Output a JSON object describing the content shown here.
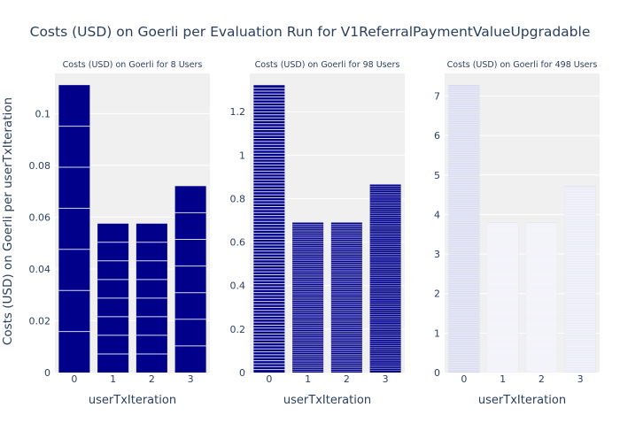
{
  "title": "Costs (USD) on Goerli per Evaluation Run for V1ReferralPaymentValueUpgradable",
  "ylabel": "Costs (USD) on Goerli per userTxIteration",
  "colors": {
    "background": "#ffffff",
    "plot_bg": "#f0f0f0",
    "grid": "#ffffff",
    "text": "#2a3f5f",
    "bar_dark": "#00008b",
    "bar_light": "#b0b4e0"
  },
  "chart_data": [
    {
      "type": "bar",
      "title": "Costs (USD) on Goerli for 8 Users",
      "xlabel": "userTxIteration",
      "categories": [
        "0",
        "1",
        "2",
        "3"
      ],
      "values": [
        0.111,
        0.0575,
        0.0575,
        0.072
      ],
      "ylim": [
        0,
        0.1155
      ],
      "yticks": [
        0,
        0.02,
        0.04,
        0.06,
        0.08,
        0.1
      ],
      "ytick_labels": [
        "0",
        "0.02",
        "0.04",
        "0.06",
        "0.08",
        "0.1"
      ],
      "segments": [
        7,
        8,
        8,
        7
      ],
      "bar_color": "#00008b",
      "grid": true
    },
    {
      "type": "bar",
      "title": "Costs (USD) on Goerli for 98 Users",
      "xlabel": "userTxIteration",
      "categories": [
        "0",
        "1",
        "2",
        "3"
      ],
      "values": [
        1.322,
        0.69,
        0.69,
        0.865
      ],
      "ylim": [
        0,
        1.376
      ],
      "yticks": [
        0,
        0.2,
        0.4,
        0.6,
        0.8,
        1,
        1.2
      ],
      "ytick_labels": [
        "0",
        "0.2",
        "0.4",
        "0.6",
        "0.8",
        "1",
        "1.2"
      ],
      "segments": [
        97,
        98,
        98,
        97
      ],
      "bar_color": "#00008b",
      "grid": true
    },
    {
      "type": "bar",
      "title": "Costs (USD) on Goerli for 498 Users",
      "xlabel": "userTxIteration",
      "categories": [
        "0",
        "1",
        "2",
        "3"
      ],
      "values": [
        7.27,
        3.79,
        3.79,
        4.72
      ],
      "ylim": [
        0,
        7.57
      ],
      "yticks": [
        0,
        1,
        2,
        3,
        4,
        5,
        6,
        7
      ],
      "ytick_labels": [
        "0",
        "1",
        "2",
        "3",
        "4",
        "5",
        "6",
        "7"
      ],
      "segments": [
        497,
        498,
        498,
        497
      ],
      "bar_color": "#b0b4e0",
      "grid": true
    }
  ]
}
